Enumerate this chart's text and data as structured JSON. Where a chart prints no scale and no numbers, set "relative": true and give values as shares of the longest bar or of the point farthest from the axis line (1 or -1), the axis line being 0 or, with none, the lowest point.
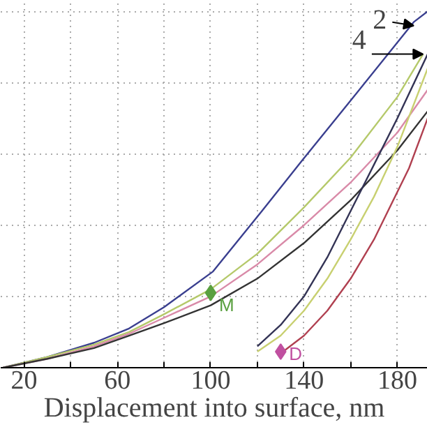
{
  "chart_data": {
    "type": "line",
    "xlabel": "Displacement into surface, nm",
    "relative": true,
    "xlim": [
      10,
      193
    ],
    "xticks": [
      20,
      {
        "value": 40,
        "label": null
      },
      60,
      {
        "value": 80,
        "label": null
      },
      100,
      {
        "value": 120,
        "label": null
      },
      140,
      {
        "value": 160,
        "label": null
      },
      180
    ],
    "grid": true,
    "marker": "none",
    "line_style": "solid",
    "series": [
      {
        "color": "#3a3f8f",
        "x": [
          11,
          30,
          50,
          65,
          80,
          101,
          122,
          139,
          160,
          187,
          193
        ],
        "values": [
          0,
          0.03,
          0.07,
          0.11,
          0.17,
          0.27,
          0.44,
          0.58,
          0.75,
          0.97,
          1.0
        ]
      },
      {
        "color": "#b5c96a",
        "x": [
          11,
          30,
          50,
          65,
          80,
          100,
          120,
          140,
          160,
          180,
          191
        ],
        "values": [
          0,
          0.03,
          0.065,
          0.1,
          0.15,
          0.22,
          0.32,
          0.45,
          0.59,
          0.76,
          0.88
        ]
      },
      {
        "color": "#d98aa8",
        "x": [
          11,
          30,
          50,
          65,
          80,
          100,
          120,
          140,
          160,
          180,
          193
        ],
        "values": [
          0,
          0.025,
          0.06,
          0.095,
          0.14,
          0.2,
          0.29,
          0.4,
          0.52,
          0.66,
          0.78
        ]
      },
      {
        "color": "#333333",
        "x": [
          11,
          30,
          50,
          65,
          80,
          100,
          120,
          140,
          160,
          180,
          193
        ],
        "values": [
          0,
          0.025,
          0.055,
          0.09,
          0.125,
          0.175,
          0.25,
          0.35,
          0.47,
          0.61,
          0.72
        ]
      },
      {
        "color": "#333355",
        "x": [
          120,
          130,
          140,
          150,
          160,
          170,
          180,
          193
        ],
        "values": [
          0.06,
          0.12,
          0.2,
          0.31,
          0.44,
          0.57,
          0.7,
          0.88
        ]
      },
      {
        "color": "#c8d070",
        "x": [
          120,
          130,
          140,
          150,
          160,
          170,
          180,
          193
        ],
        "values": [
          0.045,
          0.09,
          0.16,
          0.25,
          0.36,
          0.48,
          0.62,
          0.84
        ]
      },
      {
        "color": "#b04050",
        "x": [
          131,
          140,
          150,
          160,
          170,
          176,
          185,
          193
        ],
        "values": [
          0.045,
          0.09,
          0.16,
          0.25,
          0.36,
          0.44,
          0.56,
          0.7
        ]
      },
      {
        "type": "scatter",
        "marker": "diamond",
        "color": "#5aa040",
        "x": [
          100
        ],
        "values": [
          0.21
        ]
      },
      {
        "type": "scatter",
        "marker": "diamond",
        "color": "#c050a0",
        "x": [
          130
        ],
        "values": [
          0.045
        ]
      }
    ],
    "annotations": [
      {
        "text": "2",
        "x": 187,
        "y": 0.96
      },
      {
        "text": "4",
        "x": 191,
        "y": 0.88
      },
      {
        "text": "M",
        "x": 100,
        "y": 0.21
      },
      {
        "text": "D",
        "x": 130,
        "y": 0.045
      }
    ]
  }
}
